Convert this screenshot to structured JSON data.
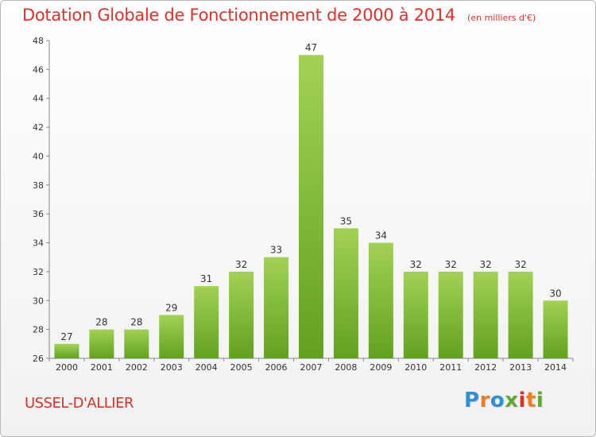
{
  "title": "Dotation Globale de Fonctionnement de 2000 à 2014",
  "unit_note": "(en milliers d'€)",
  "commune": "USSEL-D'ALLIER",
  "logo": {
    "letters": [
      "P",
      "r",
      "o",
      "x",
      "i",
      "t",
      "i"
    ],
    "colors": [
      "#2d8fd6",
      "#f07d1c",
      "#2d8fd6",
      "#5cab2e",
      "#e52c2c",
      "#f07d1c",
      "#5cab2e"
    ]
  },
  "chart_data": {
    "type": "bar",
    "title": "Dotation Globale de Fonctionnement de 2000 à 2014",
    "subtitle": "(en milliers d'€)",
    "xlabel": "",
    "ylabel": "",
    "categories": [
      "2000",
      "2001",
      "2002",
      "2003",
      "2004",
      "2005",
      "2006",
      "2007",
      "2008",
      "2009",
      "2010",
      "2011",
      "2012",
      "2013",
      "2014"
    ],
    "values": [
      27,
      28,
      28,
      29,
      31,
      32,
      33,
      47,
      35,
      34,
      32,
      32,
      32,
      32,
      30
    ],
    "ylim": [
      26,
      48
    ],
    "yticks": [
      26,
      28,
      30,
      32,
      34,
      36,
      38,
      40,
      42,
      44,
      46,
      48
    ],
    "grid": false,
    "legend": "none",
    "bar_color_top": "#a2d155",
    "bar_color_bottom": "#62a11f"
  }
}
